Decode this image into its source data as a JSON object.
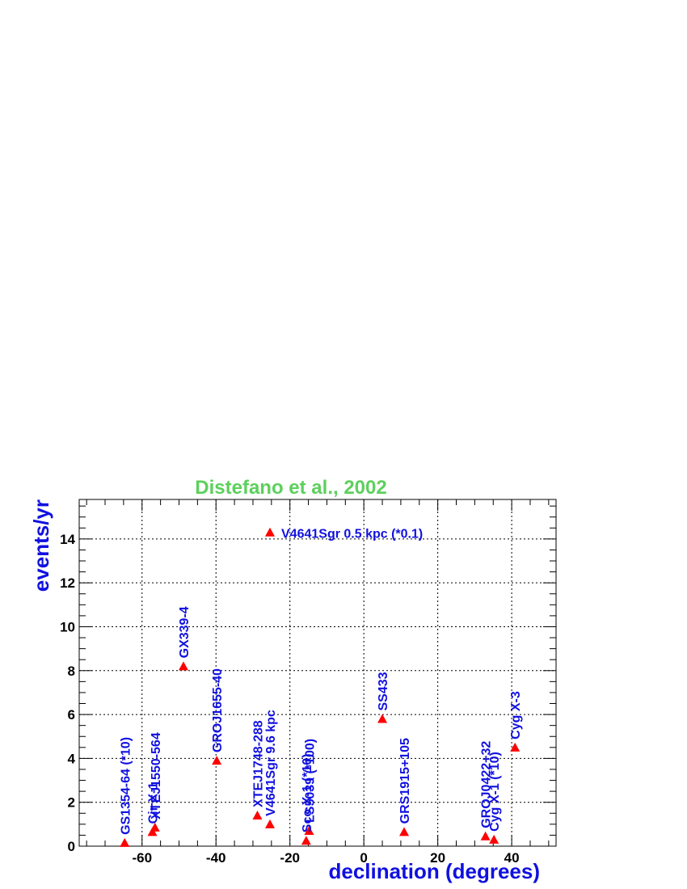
{
  "colors": {
    "title": "#5cd05c",
    "axis_title": "#1010e0",
    "label": "#1010e0",
    "marker": "#ff0000",
    "grid": "#000000"
  },
  "chart_data": {
    "type": "scatter",
    "title": "Distefano et al., 2002",
    "xlabel": "declination (degrees)",
    "ylabel": "events/yr",
    "xlim": [
      -77,
      52
    ],
    "ylim": [
      0,
      15.8
    ],
    "xticks": [
      -60,
      -40,
      -20,
      0,
      20,
      40
    ],
    "yticks": [
      0,
      2,
      4,
      6,
      8,
      10,
      12,
      14
    ],
    "grid": true,
    "marker": "triangle",
    "points": [
      {
        "name": "GS1354-64 (*10)",
        "x": -64.7,
        "y": 0.15,
        "label_orient": "vertical"
      },
      {
        "name": "Cir X-1",
        "x": -57.2,
        "y": 0.65,
        "label_orient": "vertical"
      },
      {
        "name": "XTEJ1550-564",
        "x": -56.5,
        "y": 0.85,
        "label_orient": "vertical"
      },
      {
        "name": "GX339-4",
        "x": -48.8,
        "y": 8.2,
        "label_orient": "vertical"
      },
      {
        "name": "GROJ1655-40",
        "x": -39.8,
        "y": 3.9,
        "label_orient": "vertical"
      },
      {
        "name": "XTEJ1748-288",
        "x": -28.8,
        "y": 1.4,
        "label_orient": "vertical"
      },
      {
        "name": "V4641Sgr 9.6 kpc",
        "x": -25.4,
        "y": 1.0,
        "label_orient": "vertical"
      },
      {
        "name": "V4641Sgr 0.5 kpc (*0.1)",
        "x": -25.4,
        "y": 14.3,
        "label_orient": "horizontal"
      },
      {
        "name": "Sco X-1 (*10)",
        "x": -15.6,
        "y": 0.25,
        "label_orient": "vertical"
      },
      {
        "name": "LS5039 (*100)",
        "x": -14.8,
        "y": 0.7,
        "label_orient": "vertical"
      },
      {
        "name": "SS433",
        "x": 5.0,
        "y": 5.8,
        "label_orient": "vertical"
      },
      {
        "name": "GRS1915+105",
        "x": 10.9,
        "y": 0.65,
        "label_orient": "vertical"
      },
      {
        "name": "GROJ0422+32",
        "x": 32.9,
        "y": 0.45,
        "label_orient": "vertical"
      },
      {
        "name": "Cyg X-1 (*10)",
        "x": 35.2,
        "y": 0.3,
        "label_orient": "vertical"
      },
      {
        "name": "Cyg X-3",
        "x": 40.9,
        "y": 4.5,
        "label_orient": "vertical"
      }
    ]
  }
}
